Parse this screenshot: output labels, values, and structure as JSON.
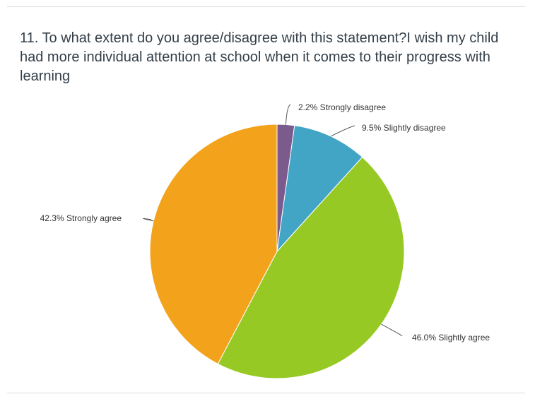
{
  "question": {
    "title": "11. To what extent do you agree/disagree with this statement?I wish my child had more individual attention at school when it comes to their progress with learning"
  },
  "chart_data": {
    "type": "pie",
    "title": "11. To what extent do you agree/disagree with this statement?I wish my child had more individual attention at school when it comes to their progress with learning",
    "start_angle_deg": 0,
    "direction": "clockwise",
    "slices": [
      {
        "category": "Strongly disagree",
        "value": 2.2,
        "color": "#7b5a8e",
        "label": "2.2% Strongly disagree"
      },
      {
        "category": "Slightly disagree",
        "value": 9.5,
        "color": "#42a5c6",
        "label": "9.5% Slightly disagree"
      },
      {
        "category": "Slightly agree",
        "value": 46.0,
        "color": "#97c925",
        "label": "46.0% Slightly agree"
      },
      {
        "category": "Strongly agree",
        "value": 42.3,
        "color": "#f3a31b",
        "label": "42.3% Strongly agree"
      }
    ]
  }
}
